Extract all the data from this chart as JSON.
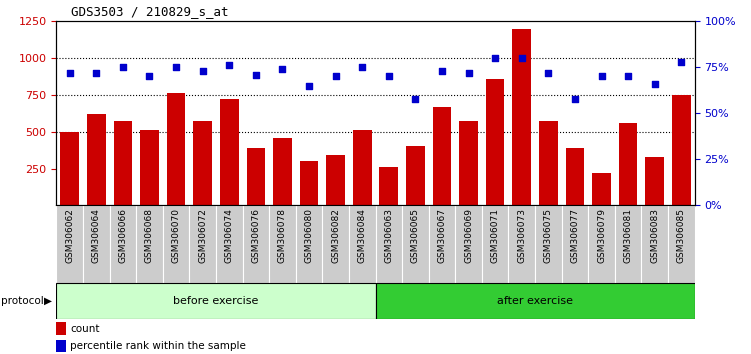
{
  "title": "GDS3503 / 210829_s_at",
  "samples": [
    "GSM306062",
    "GSM306064",
    "GSM306066",
    "GSM306068",
    "GSM306070",
    "GSM306072",
    "GSM306074",
    "GSM306076",
    "GSM306078",
    "GSM306080",
    "GSM306082",
    "GSM306084",
    "GSM306063",
    "GSM306065",
    "GSM306067",
    "GSM306069",
    "GSM306071",
    "GSM306073",
    "GSM306075",
    "GSM306077",
    "GSM306079",
    "GSM306081",
    "GSM306083",
    "GSM306085"
  ],
  "counts": [
    500,
    620,
    570,
    510,
    760,
    570,
    720,
    390,
    460,
    300,
    340,
    510,
    260,
    400,
    670,
    570,
    860,
    1200,
    570,
    390,
    220,
    560,
    330,
    750
  ],
  "percentiles": [
    72,
    72,
    75,
    70,
    75,
    73,
    76,
    71,
    74,
    65,
    70,
    75,
    70,
    58,
    73,
    72,
    80,
    80,
    72,
    58,
    70,
    70,
    66,
    78
  ],
  "before_count": 12,
  "after_count": 12,
  "bar_color": "#cc0000",
  "dot_color": "#0000cc",
  "before_label": "before exercise",
  "after_label": "after exercise",
  "before_bg": "#ccffcc",
  "after_bg": "#33cc33",
  "protocol_label": "protocol",
  "legend_count_label": "count",
  "legend_pct_label": "percentile rank within the sample",
  "ylim_left": [
    0,
    1250
  ],
  "ylim_right": [
    0,
    100
  ],
  "yticks_left": [
    250,
    500,
    750,
    1000,
    1250
  ],
  "yticks_right": [
    0,
    25,
    50,
    75,
    100
  ],
  "grid_values": [
    500,
    750,
    1000
  ],
  "fig_width": 7.51,
  "fig_height": 3.54,
  "dpi": 100
}
